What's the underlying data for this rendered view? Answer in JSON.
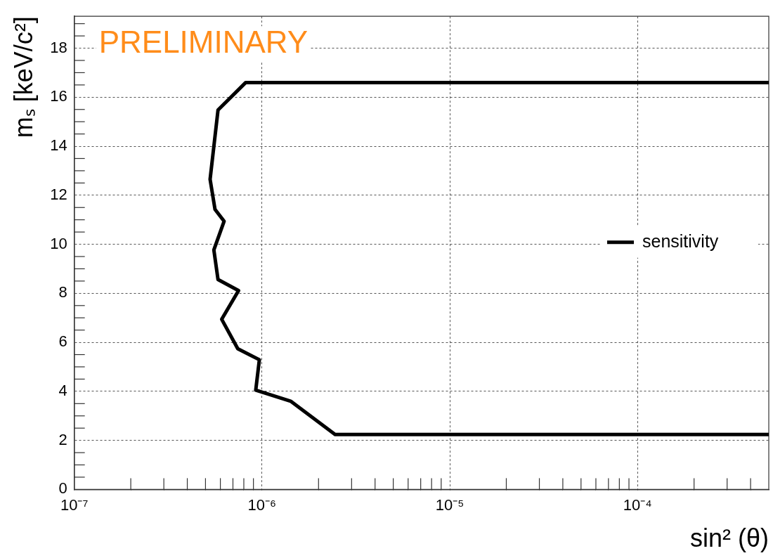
{
  "chart_data": {
    "type": "line",
    "xlabel": "sin² (θ)",
    "ylabel": "mₛ [keV/c²]",
    "annotations": [
      "PRELIMINARY"
    ],
    "log": "x",
    "grid": true,
    "legend": "right",
    "marker": "none",
    "line_style": "solid",
    "xlim": [
      1e-07,
      0.0005
    ],
    "ylim": [
      0,
      19.3
    ],
    "xticks": [
      {
        "value": 1e-07,
        "label": "10⁻⁷"
      },
      {
        "value": 2e-07,
        "label": null
      },
      {
        "value": 3e-07,
        "label": null
      },
      {
        "value": 4e-07,
        "label": null
      },
      {
        "value": 5e-07,
        "label": null
      },
      {
        "value": 6e-07,
        "label": null
      },
      {
        "value": 7e-07,
        "label": null
      },
      {
        "value": 8e-07,
        "label": null
      },
      {
        "value": 9e-07,
        "label": null
      },
      {
        "value": 1e-06,
        "label": "10⁻⁶"
      },
      {
        "value": 2e-06,
        "label": null
      },
      {
        "value": 3e-06,
        "label": null
      },
      {
        "value": 4e-06,
        "label": null
      },
      {
        "value": 5e-06,
        "label": null
      },
      {
        "value": 6e-06,
        "label": null
      },
      {
        "value": 7e-06,
        "label": null
      },
      {
        "value": 8e-06,
        "label": null
      },
      {
        "value": 9e-06,
        "label": null
      },
      {
        "value": 1e-05,
        "label": "10⁻⁵"
      },
      {
        "value": 2e-05,
        "label": null
      },
      {
        "value": 3e-05,
        "label": null
      },
      {
        "value": 4e-05,
        "label": null
      },
      {
        "value": 5e-05,
        "label": null
      },
      {
        "value": 6e-05,
        "label": null
      },
      {
        "value": 7e-05,
        "label": null
      },
      {
        "value": 8e-05,
        "label": null
      },
      {
        "value": 9e-05,
        "label": null
      },
      {
        "value": 0.0001,
        "label": "10⁻⁴"
      },
      {
        "value": 0.0002,
        "label": null
      },
      {
        "value": 0.0003,
        "label": null
      },
      {
        "value": 0.0004,
        "label": null
      }
    ],
    "yticks": [
      0,
      {
        "value": 0.5,
        "label": null
      },
      {
        "value": 1,
        "label": null
      },
      {
        "value": 1.5,
        "label": null
      },
      2,
      {
        "value": 2.5,
        "label": null
      },
      {
        "value": 3,
        "label": null
      },
      {
        "value": 3.5,
        "label": null
      },
      4,
      {
        "value": 4.5,
        "label": null
      },
      {
        "value": 5,
        "label": null
      },
      {
        "value": 5.5,
        "label": null
      },
      6,
      {
        "value": 6.5,
        "label": null
      },
      {
        "value": 7,
        "label": null
      },
      {
        "value": 7.5,
        "label": null
      },
      8,
      {
        "value": 8.5,
        "label": null
      },
      {
        "value": 9,
        "label": null
      },
      {
        "value": 9.5,
        "label": null
      },
      10,
      {
        "value": 10.5,
        "label": null
      },
      {
        "value": 11,
        "label": null
      },
      {
        "value": 11.5,
        "label": null
      },
      12,
      {
        "value": 12.5,
        "label": null
      },
      {
        "value": 13,
        "label": null
      },
      {
        "value": 13.5,
        "label": null
      },
      14,
      {
        "value": 14.5,
        "label": null
      },
      {
        "value": 15,
        "label": null
      },
      {
        "value": 15.5,
        "label": null
      },
      16,
      {
        "value": 16.5,
        "label": null
      },
      {
        "value": 17,
        "label": null
      },
      {
        "value": 17.5,
        "label": null
      },
      18,
      {
        "value": 18.5,
        "label": null
      },
      {
        "value": 19,
        "label": null
      }
    ],
    "series": [
      {
        "name": "sensitivity",
        "color": "#000000",
        "x": [
          0.0005,
          8.19e-07,
          5.83e-07,
          5.29e-07,
          5.62e-07,
          6.28e-07,
          5.54e-07,
          5.83e-07,
          7.5e-07,
          6.1e-07,
          7.43e-07,
          9.68e-07,
          9.26e-07,
          1.42e-06,
          2.45e-06,
          0.0005
        ],
        "values": [
          16.6,
          16.6,
          15.48,
          12.65,
          11.42,
          10.94,
          9.77,
          8.56,
          8.11,
          6.94,
          5.74,
          5.29,
          4.05,
          3.6,
          2.24,
          2.24
        ]
      }
    ]
  }
}
